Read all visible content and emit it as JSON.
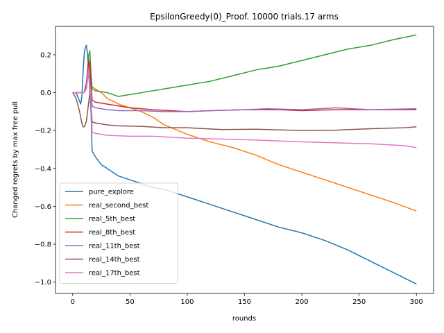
{
  "chart_data": {
    "type": "line",
    "title": "EpsilonGreedy(0)_Proof. 10000 trials.17 arms",
    "xlabel": "rounds",
    "ylabel": "Changed regrets by max free pull",
    "xlim": [
      -15,
      315
    ],
    "ylim": [
      -1.06,
      0.35
    ],
    "xticks": [
      0,
      50,
      100,
      150,
      200,
      250,
      300
    ],
    "yticks": [
      -1.0,
      -0.8,
      -0.6,
      -0.4,
      -0.2,
      0.0,
      0.2
    ],
    "ytick_labels": [
      "−1.0",
      "−0.8",
      "−0.6",
      "−0.4",
      "−0.2",
      "0.0",
      "0.2"
    ],
    "grid": false,
    "legend_position": "lower-left",
    "series": [
      {
        "name": "pure_explore",
        "color": "#1f77b4",
        "x": [
          0,
          3,
          5,
          7,
          8,
          9,
          10,
          11,
          12,
          13,
          14,
          15,
          16,
          17,
          20,
          25,
          30,
          40,
          50,
          60,
          70,
          80,
          100,
          120,
          140,
          160,
          180,
          200,
          220,
          240,
          260,
          280,
          290,
          300
        ],
        "y": [
          0,
          0,
          -0.03,
          -0.06,
          -0.02,
          0.1,
          0.2,
          0.24,
          0.25,
          0.2,
          0.1,
          0.0,
          -0.1,
          -0.31,
          -0.34,
          -0.38,
          -0.4,
          -0.44,
          -0.46,
          -0.48,
          -0.5,
          -0.51,
          -0.55,
          -0.59,
          -0.63,
          -0.67,
          -0.71,
          -0.74,
          -0.78,
          -0.83,
          -0.89,
          -0.95,
          -0.98,
          -1.01
        ]
      },
      {
        "name": "real_second_best",
        "color": "#ff7f0e",
        "x": [
          0,
          5,
          10,
          12,
          13,
          14,
          15,
          16,
          17,
          20,
          25,
          30,
          40,
          50,
          60,
          70,
          80,
          100,
          120,
          140,
          160,
          180,
          200,
          220,
          240,
          260,
          280,
          300
        ],
        "y": [
          0,
          0,
          0,
          0.05,
          0.12,
          0.18,
          0.08,
          0.04,
          0.03,
          0.02,
          0.0,
          -0.03,
          -0.06,
          -0.08,
          -0.1,
          -0.13,
          -0.17,
          -0.22,
          -0.26,
          -0.29,
          -0.33,
          -0.38,
          -0.42,
          -0.46,
          -0.5,
          -0.54,
          -0.58,
          -0.625
        ]
      },
      {
        "name": "real_5th_best",
        "color": "#2ca02c",
        "x": [
          0,
          5,
          10,
          12,
          13,
          14,
          15,
          16,
          17,
          20,
          30,
          40,
          50,
          60,
          80,
          100,
          120,
          140,
          160,
          180,
          200,
          220,
          240,
          260,
          280,
          300
        ],
        "y": [
          0,
          0,
          0,
          0.05,
          0.12,
          0.2,
          0.22,
          0.1,
          0.02,
          0.01,
          0.0,
          -0.02,
          -0.01,
          0.0,
          0.02,
          0.04,
          0.06,
          0.09,
          0.12,
          0.14,
          0.17,
          0.2,
          0.23,
          0.25,
          0.28,
          0.305
        ]
      },
      {
        "name": "real_8th_best",
        "color": "#d62728",
        "x": [
          0,
          5,
          10,
          12,
          13,
          14,
          15,
          16,
          17,
          20,
          30,
          50,
          70,
          100,
          120,
          150,
          180,
          200,
          230,
          260,
          300
        ],
        "y": [
          0,
          0,
          0,
          0.05,
          0.1,
          0.17,
          0.15,
          0.05,
          -0.04,
          -0.05,
          -0.06,
          -0.08,
          -0.09,
          -0.1,
          -0.095,
          -0.09,
          -0.09,
          -0.095,
          -0.09,
          -0.09,
          -0.09
        ]
      },
      {
        "name": "real_11th_best",
        "color": "#9467bd",
        "x": [
          0,
          5,
          10,
          12,
          13,
          14,
          15,
          16,
          17,
          20,
          30,
          40,
          60,
          80,
          100,
          120,
          150,
          170,
          200,
          230,
          260,
          300
        ],
        "y": [
          0,
          0,
          0,
          0.03,
          0.1,
          0.13,
          0.06,
          0.0,
          -0.07,
          -0.08,
          -0.09,
          -0.095,
          -0.095,
          -0.1,
          -0.1,
          -0.095,
          -0.09,
          -0.085,
          -0.09,
          -0.08,
          -0.09,
          -0.085
        ]
      },
      {
        "name": "real_14th_best",
        "color": "#8c564b",
        "x": [
          0,
          3,
          6,
          8,
          9,
          10,
          11,
          12,
          13,
          14,
          15,
          16,
          17,
          20,
          30,
          40,
          60,
          80,
          100,
          130,
          160,
          200,
          230,
          260,
          290,
          300
        ],
        "y": [
          0,
          -0.03,
          -0.1,
          -0.16,
          -0.18,
          -0.18,
          -0.17,
          -0.15,
          -0.1,
          -0.05,
          0.0,
          -0.05,
          -0.155,
          -0.16,
          -0.17,
          -0.175,
          -0.178,
          -0.185,
          -0.185,
          -0.195,
          -0.193,
          -0.2,
          -0.198,
          -0.19,
          -0.185,
          -0.18
        ]
      },
      {
        "name": "real_17th_best",
        "color": "#e377c2",
        "x": [
          0,
          5,
          10,
          12,
          13,
          14,
          15,
          16,
          17,
          20,
          30,
          50,
          70,
          100,
          130,
          160,
          200,
          230,
          260,
          290,
          300
        ],
        "y": [
          0,
          0,
          0,
          0.02,
          0.07,
          0.12,
          0.04,
          -0.05,
          -0.21,
          -0.215,
          -0.225,
          -0.23,
          -0.23,
          -0.24,
          -0.245,
          -0.25,
          -0.26,
          -0.265,
          -0.27,
          -0.28,
          -0.29
        ]
      }
    ]
  }
}
